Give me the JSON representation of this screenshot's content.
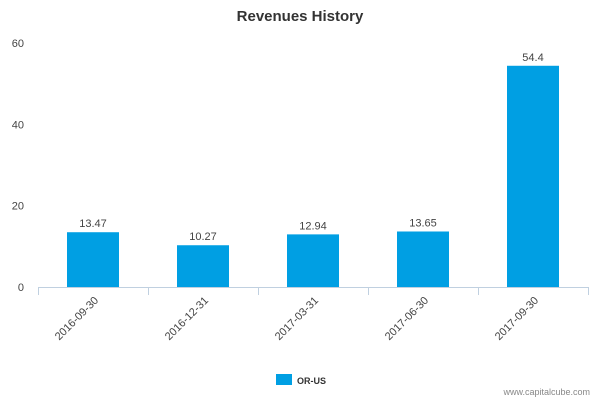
{
  "chart_data": {
    "type": "bar",
    "title": "Revenues History",
    "categories": [
      "2016-09-30",
      "2016-12-31",
      "2017-03-31",
      "2017-06-30",
      "2017-09-30"
    ],
    "series": [
      {
        "name": "OR-US",
        "values": [
          13.47,
          10.27,
          12.94,
          13.65,
          54.4
        ],
        "value_labels": [
          "13.47",
          "10.27",
          "12.94",
          "13.65",
          "54.4"
        ]
      }
    ],
    "ylim": [
      0,
      60
    ],
    "yticks": [
      0,
      20,
      40,
      60
    ],
    "xlabel": "",
    "ylabel": "",
    "grid": false,
    "legend_position": "bottom-center",
    "colors": {
      "bar": "#009fe3",
      "axis": "#c0d0e0"
    }
  },
  "credit": "www.capitalcube.com"
}
